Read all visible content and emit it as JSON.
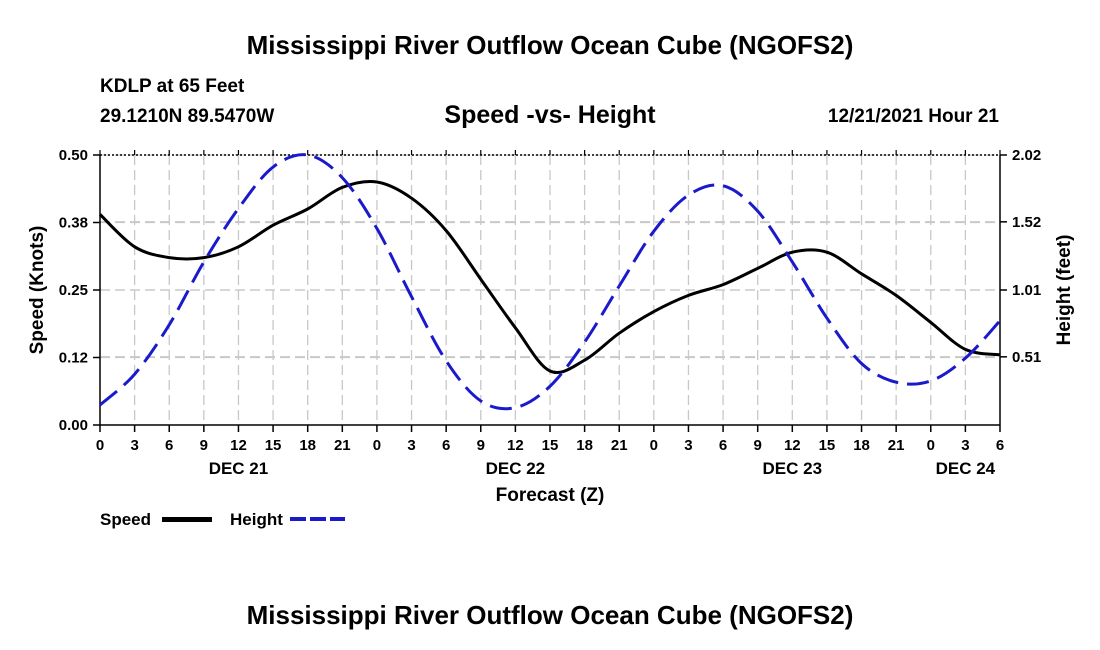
{
  "header": {
    "title": "Mississippi River Outflow Ocean Cube (NGOFS2)",
    "station": "KDLP at 65 Feet",
    "coords": "29.1210N  89.5470W",
    "subtitle": "Speed -vs- Height",
    "datetime": "12/21/2021 Hour 21"
  },
  "footer": {
    "title": "Mississippi River Outflow Ocean Cube (NGOFS2)"
  },
  "legend": {
    "speed_label": "Speed",
    "height_label": "Height"
  },
  "colors": {
    "speed": "#000000",
    "height": "#1a1acc",
    "grid": "#c8c8c8"
  },
  "chart_data": {
    "type": "line",
    "xlabel": "Forecast (Z)",
    "ylabel": "Speed (Knots)",
    "y2label": "Height (feet)",
    "x_range_hours": [
      0,
      78
    ],
    "x_ticks": [
      {
        "h": 0,
        "label": "0"
      },
      {
        "h": 3,
        "label": "3"
      },
      {
        "h": 6,
        "label": "6"
      },
      {
        "h": 9,
        "label": "9"
      },
      {
        "h": 12,
        "label": "12"
      },
      {
        "h": 15,
        "label": "15"
      },
      {
        "h": 18,
        "label": "18"
      },
      {
        "h": 21,
        "label": "21"
      },
      {
        "h": 24,
        "label": "0"
      },
      {
        "h": 27,
        "label": "3"
      },
      {
        "h": 30,
        "label": "6"
      },
      {
        "h": 33,
        "label": "9"
      },
      {
        "h": 36,
        "label": "12"
      },
      {
        "h": 39,
        "label": "15"
      },
      {
        "h": 42,
        "label": "18"
      },
      {
        "h": 45,
        "label": "21"
      },
      {
        "h": 48,
        "label": "0"
      },
      {
        "h": 51,
        "label": "3"
      },
      {
        "h": 54,
        "label": "6"
      },
      {
        "h": 57,
        "label": "9"
      },
      {
        "h": 60,
        "label": "12"
      },
      {
        "h": 63,
        "label": "15"
      },
      {
        "h": 66,
        "label": "18"
      },
      {
        "h": 69,
        "label": "21"
      },
      {
        "h": 72,
        "label": "0"
      },
      {
        "h": 75,
        "label": "3"
      },
      {
        "h": 78,
        "label": "6"
      }
    ],
    "day_labels": [
      {
        "h": 12,
        "label": "DEC 21"
      },
      {
        "h": 36,
        "label": "DEC 22"
      },
      {
        "h": 60,
        "label": "DEC 23"
      },
      {
        "h": 75,
        "label": "DEC 24"
      }
    ],
    "y_range": [
      0,
      0.5
    ],
    "y_ticks": [
      {
        "v": 0.0,
        "label": "0.00"
      },
      {
        "v": 0.125,
        "label": "0.12"
      },
      {
        "v": 0.25,
        "label": "0.25"
      },
      {
        "v": 0.375,
        "label": "0.38"
      },
      {
        "v": 0.5,
        "label": "0.50"
      }
    ],
    "y2_range": [
      0.0,
      2.02
    ],
    "y2_ticks": [
      {
        "v": 0.51,
        "label": "0.51"
      },
      {
        "v": 1.01,
        "label": "1.01"
      },
      {
        "v": 1.52,
        "label": "1.52"
      },
      {
        "v": 2.02,
        "label": "2.02"
      }
    ],
    "series": [
      {
        "name": "Speed",
        "axis": "left",
        "style": "solid",
        "x": [
          0,
          3,
          6,
          9,
          12,
          15,
          18,
          21,
          24,
          27,
          30,
          33,
          36,
          39,
          42,
          45,
          48,
          51,
          54,
          57,
          60,
          63,
          66,
          69,
          72,
          75,
          78
        ],
        "values": [
          0.39,
          0.33,
          0.31,
          0.31,
          0.33,
          0.37,
          0.4,
          0.44,
          0.45,
          0.42,
          0.36,
          0.27,
          0.18,
          0.1,
          0.12,
          0.17,
          0.21,
          0.24,
          0.26,
          0.29,
          0.32,
          0.32,
          0.28,
          0.24,
          0.19,
          0.14,
          0.13
        ]
      },
      {
        "name": "Height",
        "axis": "right",
        "style": "dashed",
        "x": [
          0,
          3,
          6,
          9,
          12,
          15,
          18,
          21,
          24,
          27,
          30,
          33,
          36,
          39,
          42,
          45,
          48,
          51,
          54,
          57,
          60,
          63,
          66,
          69,
          72,
          75,
          78
        ],
        "values": [
          0.15,
          0.38,
          0.75,
          1.22,
          1.62,
          1.93,
          2.02,
          1.85,
          1.47,
          0.96,
          0.48,
          0.18,
          0.13,
          0.29,
          0.62,
          1.04,
          1.45,
          1.72,
          1.79,
          1.6,
          1.22,
          0.8,
          0.46,
          0.32,
          0.33,
          0.5,
          0.78
        ]
      }
    ]
  }
}
